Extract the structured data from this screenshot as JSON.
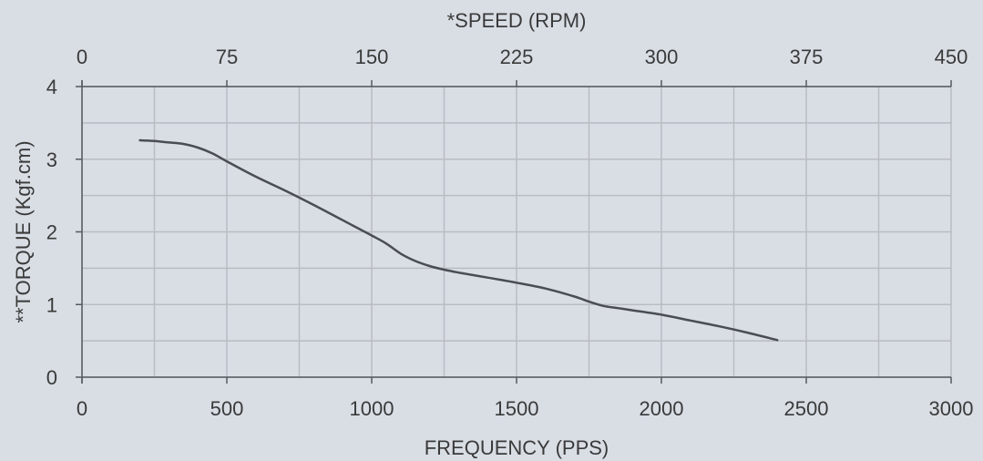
{
  "chart_data": {
    "type": "line",
    "title": "",
    "xlabel": "FREQUENCY (PPS)",
    "ylabel": "**TORQUE (Kgf.cm)",
    "x2label": "*SPEED (RPM)",
    "xlim": [
      0,
      3000
    ],
    "ylim": [
      0,
      4
    ],
    "x2lim": [
      0,
      450
    ],
    "xticks": [
      0,
      500,
      1000,
      1500,
      2000,
      2500,
      3000
    ],
    "yticks": [
      0,
      1,
      2,
      3,
      4
    ],
    "x2ticks": [
      0,
      75,
      150,
      225,
      300,
      375,
      450
    ],
    "xgrid": [
      0,
      250,
      500,
      750,
      1000,
      1250,
      1500,
      1750,
      2000,
      2250,
      2500,
      2750,
      3000
    ],
    "ygrid": [
      0,
      0.5,
      1,
      1.5,
      2,
      2.5,
      3,
      3.5,
      4
    ],
    "grid": true,
    "legend": "none",
    "series": [
      {
        "color": "#4a4d52",
        "points": [
          [
            200,
            3.26
          ],
          [
            250,
            3.25
          ],
          [
            300,
            3.23
          ],
          [
            350,
            3.21
          ],
          [
            400,
            3.16
          ],
          [
            450,
            3.08
          ],
          [
            500,
            2.97
          ],
          [
            600,
            2.76
          ],
          [
            700,
            2.57
          ],
          [
            800,
            2.37
          ],
          [
            900,
            2.16
          ],
          [
            1000,
            1.95
          ],
          [
            1050,
            1.84
          ],
          [
            1100,
            1.7
          ],
          [
            1150,
            1.6
          ],
          [
            1200,
            1.53
          ],
          [
            1250,
            1.48
          ],
          [
            1300,
            1.44
          ],
          [
            1400,
            1.37
          ],
          [
            1500,
            1.3
          ],
          [
            1600,
            1.22
          ],
          [
            1700,
            1.11
          ],
          [
            1750,
            1.04
          ],
          [
            1800,
            0.98
          ],
          [
            1850,
            0.95
          ],
          [
            1900,
            0.92
          ],
          [
            2000,
            0.86
          ],
          [
            2100,
            0.78
          ],
          [
            2200,
            0.7
          ],
          [
            2300,
            0.61
          ],
          [
            2400,
            0.51
          ]
        ]
      }
    ]
  }
}
